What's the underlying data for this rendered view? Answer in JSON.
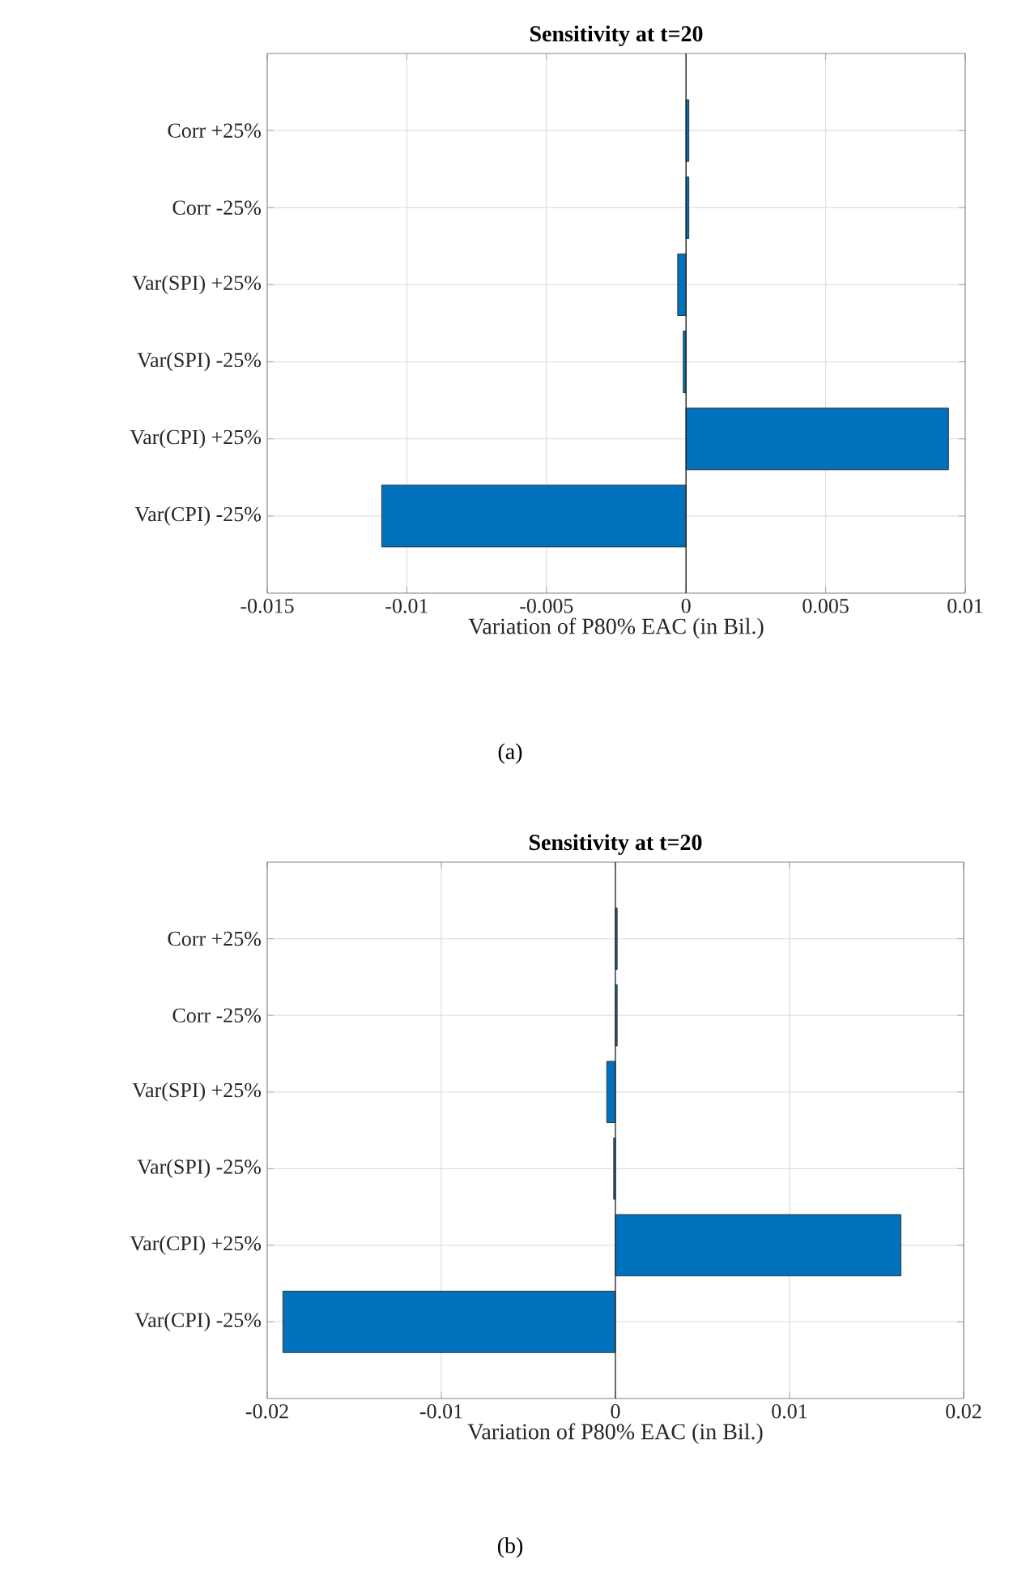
{
  "chart_data": [
    {
      "type": "bar",
      "orientation": "horizontal",
      "title": "Sensitivity at t=20",
      "xlabel": "Variation of P80% EAC (in Bil.)",
      "categories": [
        "Corr +25%",
        "Corr -25%",
        "Var(SPI) +25%",
        "Var(SPI) -25%",
        "Var(CPI) +25%",
        "Var(CPI) -25%"
      ],
      "values": [
        0.0001,
        0.0001,
        -0.0003,
        -0.0001,
        0.0094,
        -0.0109
      ],
      "color": "#0072bd",
      "xlim": [
        -0.015,
        0.01
      ],
      "xticks": [
        -0.015,
        -0.01,
        -0.005,
        0,
        0.005,
        0.01
      ],
      "grid": true,
      "ref_lines": [
        {
          "axis": "x",
          "value": 0,
          "color": "#262626"
        }
      ],
      "annotations": [
        "(a)"
      ]
    },
    {
      "type": "bar",
      "orientation": "horizontal",
      "title": "Sensitivity at t=20",
      "xlabel": "Variation of P80% EAC (in Bil.)",
      "categories": [
        "Corr +25%",
        "Corr -25%",
        "Var(SPI) +25%",
        "Var(SPI) -25%",
        "Var(CPI) +25%",
        "Var(CPI) -25%"
      ],
      "values": [
        0.0001,
        0.0001,
        -0.0005,
        -0.0001,
        0.0164,
        -0.0191
      ],
      "color": "#0072bd",
      "xlim": [
        -0.02,
        0.02
      ],
      "xticks": [
        -0.02,
        -0.01,
        0,
        0.01,
        0.02
      ],
      "grid": true,
      "ref_lines": [
        {
          "axis": "x",
          "value": 0,
          "color": "#262626"
        }
      ],
      "annotations": [
        "(b)"
      ]
    }
  ]
}
